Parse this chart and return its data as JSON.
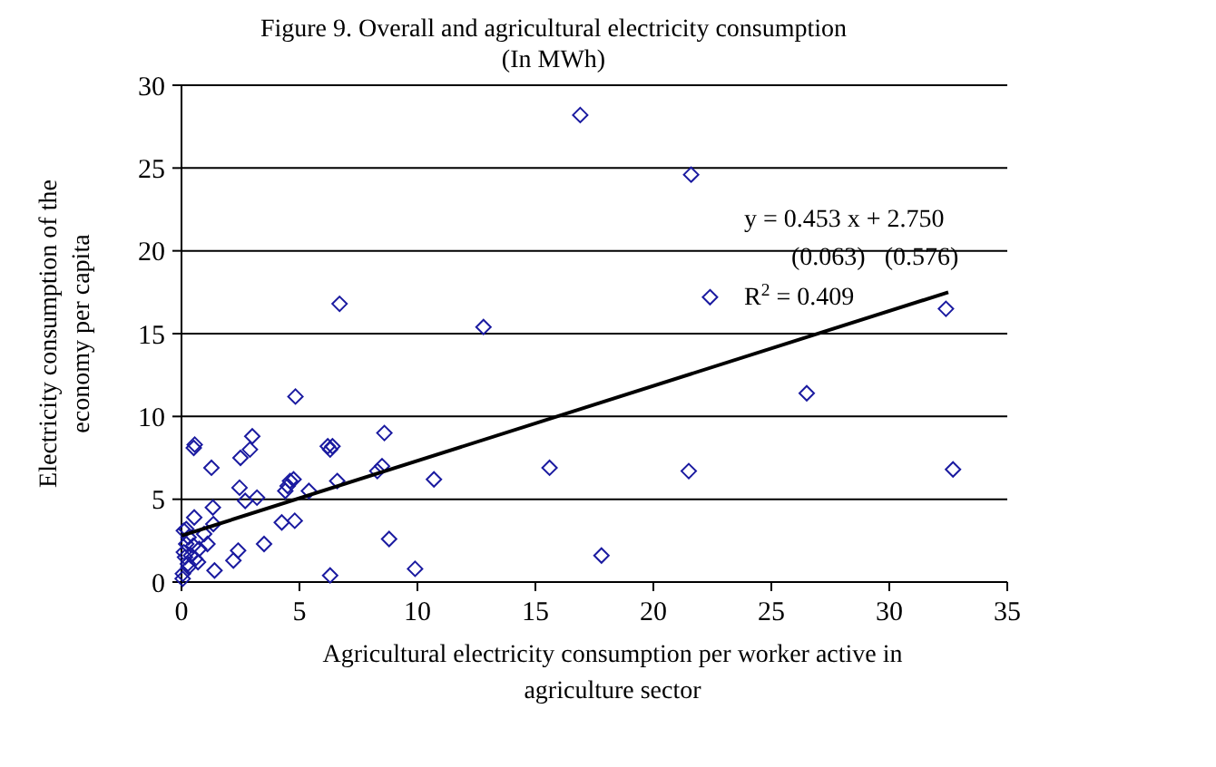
{
  "chart_data": {
    "type": "scatter",
    "title": "Figure 9. Overall and agricultural electricity consumption",
    "subtitle": "(In MWh)",
    "xlabel": "Agricultural electricity consumption per worker active in agriculture sector",
    "ylabel": "Electricity consumption of the economy per capita",
    "xlim": [
      0,
      35
    ],
    "xticks": [
      0,
      5,
      10,
      15,
      20,
      25,
      30,
      35
    ],
    "ylim": [
      0,
      30
    ],
    "yticks": [
      0,
      5,
      10,
      15,
      20,
      25,
      30
    ],
    "grid": "y",
    "marker": "diamond",
    "annotations": [
      "y = 0.453 x + 2.750",
      "(0.063)   (0.576)",
      "R$^{2}$ = 0.409"
    ],
    "series": [
      {
        "color": "#1a1aa0",
        "x": [
          16.9,
          21.6,
          22.4,
          12.8,
          8.6,
          8.5,
          8.3,
          10.7,
          15.6,
          21.5,
          26.5,
          8.8,
          9.9,
          17.8,
          32.4,
          32.7,
          0.56,
          4.83,
          6.3,
          6.4,
          6.7,
          0.52,
          1.27,
          1.33,
          1.35,
          1.1,
          1.4,
          0.54,
          0.2,
          2.46,
          2.5,
          2.9,
          3.0,
          2.7,
          3.2,
          2.2,
          2.4,
          3.5,
          4.25,
          4.8,
          4.4,
          4.5,
          4.6,
          4.75,
          5.4,
          6.3,
          6.2,
          6.6,
          0.96,
          0.75,
          0.58,
          0.27,
          0.06,
          0.1,
          0.15,
          0.2,
          0.3,
          0.05,
          0.4,
          0.1,
          0.3,
          0.5,
          0.7
        ],
        "values": [
          28.2,
          24.6,
          17.2,
          15.4,
          9.0,
          7.0,
          6.7,
          6.2,
          6.9,
          6.7,
          11.4,
          2.6,
          0.8,
          1.6,
          16.5,
          6.8,
          8.3,
          11.2,
          8.0,
          8.2,
          16.8,
          8.1,
          6.9,
          4.5,
          3.5,
          2.3,
          0.7,
          3.9,
          3.2,
          5.7,
          7.5,
          8.0,
          8.8,
          4.9,
          5.1,
          1.3,
          1.9,
          2.3,
          3.6,
          3.7,
          5.5,
          5.8,
          6.1,
          6.2,
          5.5,
          0.4,
          8.2,
          6.1,
          2.9,
          2.0,
          1.4,
          1.1,
          0.5,
          1.8,
          1.5,
          2.3,
          0.9,
          0.2,
          1.6,
          3.1,
          2.7,
          2.2,
          1.2
        ]
      },
      {
        "type": "line",
        "color": "#000000",
        "x": [
          0,
          32.5
        ],
        "values": [
          2.8,
          17.5
        ],
        "marker": "none",
        "line_style": "solid"
      }
    ]
  }
}
